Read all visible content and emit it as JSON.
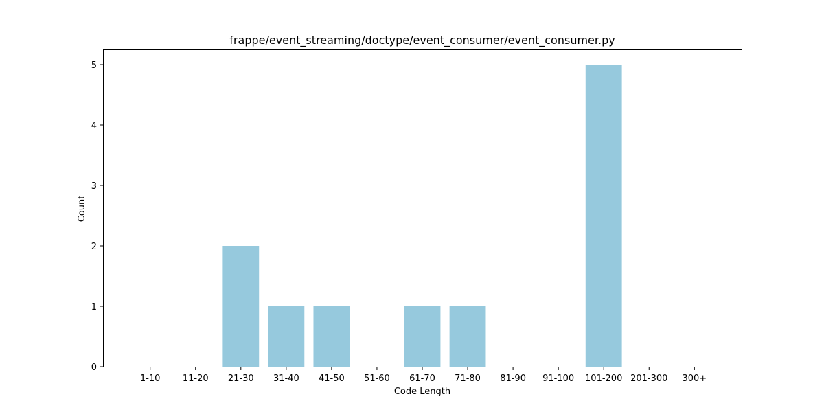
{
  "chart_data": {
    "type": "bar",
    "title": "frappe/event_streaming/doctype/event_consumer/event_consumer.py",
    "xlabel": "Code Length",
    "ylabel": "Count",
    "categories": [
      "1-10",
      "11-20",
      "21-30",
      "31-40",
      "41-50",
      "51-60",
      "61-70",
      "71-80",
      "81-90",
      "91-100",
      "101-200",
      "201-300",
      "300+"
    ],
    "values": [
      0,
      0,
      2,
      1,
      1,
      0,
      1,
      1,
      0,
      0,
      5,
      0,
      0
    ],
    "ylim": [
      0,
      5.25
    ],
    "yticks": [
      0,
      1,
      2,
      3,
      4,
      5
    ],
    "bar_color": "#96c9dd",
    "grid": false,
    "legend": "none"
  }
}
